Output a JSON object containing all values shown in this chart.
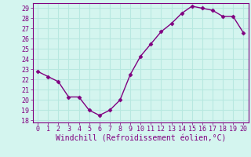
{
  "x": [
    0,
    1,
    2,
    3,
    4,
    5,
    6,
    7,
    8,
    9,
    10,
    11,
    12,
    13,
    14,
    15,
    16,
    17,
    18,
    19,
    20
  ],
  "y": [
    22.8,
    22.3,
    21.8,
    20.3,
    20.3,
    19.0,
    18.5,
    19.0,
    20.0,
    22.5,
    24.3,
    25.5,
    26.7,
    27.5,
    28.5,
    29.2,
    29.0,
    28.8,
    28.2,
    28.2,
    26.6
  ],
  "line_color": "#800080",
  "marker": "D",
  "marker_size": 2.5,
  "linewidth": 1.0,
  "xlabel": "Windchill (Refroidissement éolien,°C)",
  "xlabel_fontsize": 7,
  "ylim": [
    17.8,
    29.5
  ],
  "xlim": [
    -0.5,
    20.5
  ],
  "yticks": [
    18,
    19,
    20,
    21,
    22,
    23,
    24,
    25,
    26,
    27,
    28,
    29
  ],
  "xticks": [
    0,
    1,
    2,
    3,
    4,
    5,
    6,
    7,
    8,
    9,
    10,
    11,
    12,
    13,
    14,
    15,
    16,
    17,
    18,
    19,
    20
  ],
  "bg_color": "#d4f5ef",
  "grid_color": "#b8e8e0",
  "tick_fontsize": 6,
  "tick_color": "#800080",
  "label_color": "#800080",
  "spine_color": "#800080"
}
